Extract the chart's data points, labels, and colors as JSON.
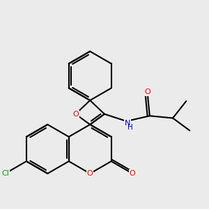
{
  "background_color": "#ebebeb",
  "bond_color": "#000000",
  "atom_colors": {
    "O": "#ff0000",
    "N": "#0000cd",
    "Cl": "#00aa00",
    "C": "#000000"
  },
  "figsize": [
    3.0,
    3.0
  ],
  "dpi": 100
}
